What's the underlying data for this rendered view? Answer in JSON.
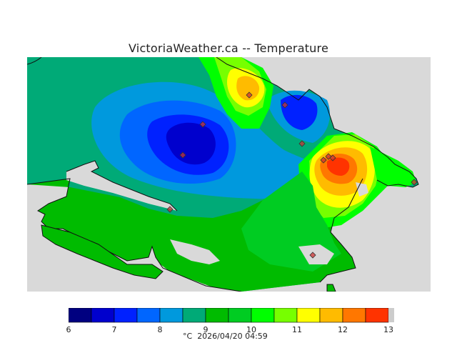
{
  "title": "VictoriaWeather.ca -- Temperature",
  "footer": {
    "unit": "°C",
    "timestamp": "2026/04/20 04:59"
  },
  "colorbar": {
    "ticks": [
      "6",
      "7",
      "8",
      "9",
      "10",
      "11",
      "12",
      "13"
    ],
    "range": [
      6,
      13
    ],
    "step": 0.5,
    "colors": [
      "#000080",
      "#0000cd",
      "#0021ff",
      "#0066ff",
      "#0099dd",
      "#00aa77",
      "#00bb00",
      "#00cc22",
      "#00ff00",
      "#77ff00",
      "#ffff00",
      "#ffbb00",
      "#ff7700",
      "#ff3300",
      "#ff0000"
    ]
  },
  "colors": {
    "land_base": "#00aa77",
    "water": "#d9d9d9",
    "station_marker": "#cc3333"
  },
  "map": {
    "stations": 11,
    "regions": [
      {
        "name": "cold-core-west",
        "level": "7"
      },
      {
        "name": "cold-core-east",
        "level": "7.5"
      },
      {
        "name": "warm-core-north",
        "level": "11"
      },
      {
        "name": "warm-core-east",
        "level": "12"
      }
    ]
  }
}
